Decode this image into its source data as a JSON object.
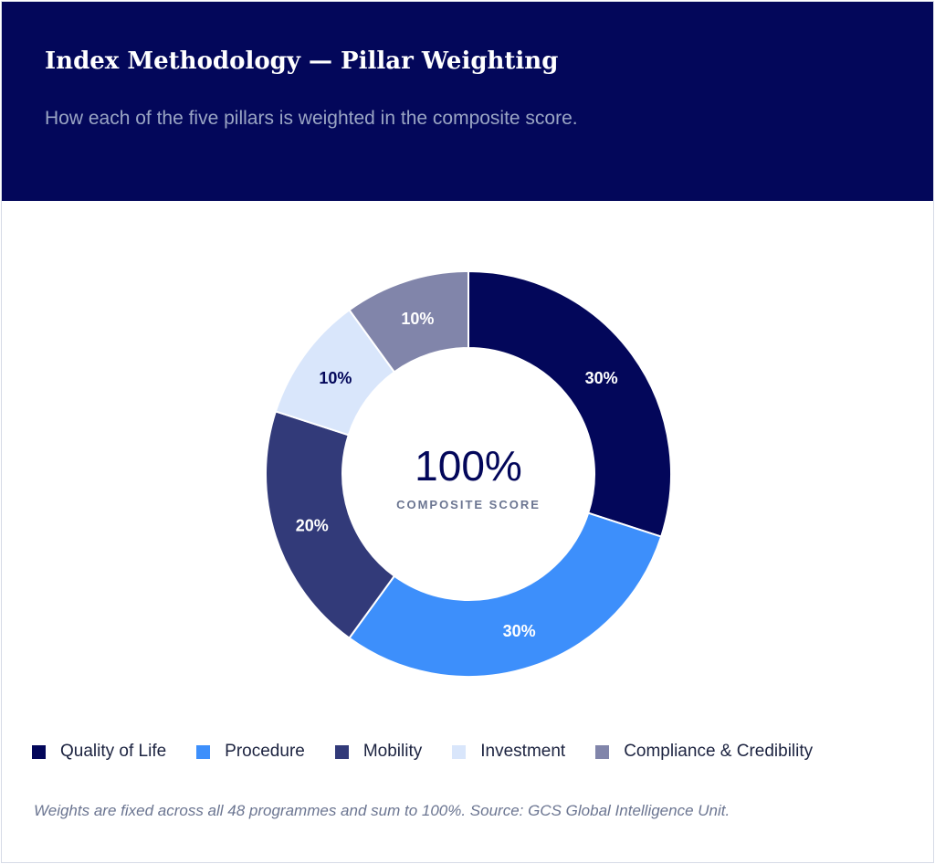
{
  "header": {
    "title": "Index Methodology — Pillar Weighting",
    "subtitle": "How each of the five pillars is weighted in the composite score."
  },
  "chart_data": {
    "type": "pie",
    "variant": "donut",
    "title": "",
    "categories": [
      "Quality of Life",
      "Procedure",
      "Mobility",
      "Investment",
      "Compliance & Credibility"
    ],
    "values": [
      30,
      30,
      20,
      10,
      10
    ],
    "labels": [
      "30%",
      "30%",
      "20%",
      "10%",
      "10%"
    ],
    "colors": [
      "#03075a",
      "#3d8ffb",
      "#323a79",
      "#d9e6fb",
      "#8185aa"
    ],
    "label_colors": [
      "#ffffff",
      "#ffffff",
      "#ffffff",
      "#03075a",
      "#ffffff"
    ],
    "center": {
      "value": "100%",
      "caption": "COMPOSITE SCORE"
    },
    "legend_position": "bottom-left"
  },
  "footnote": "Weights are fixed across all 48 programmes and sum to 100%. Source: GCS Global Intelligence Unit."
}
